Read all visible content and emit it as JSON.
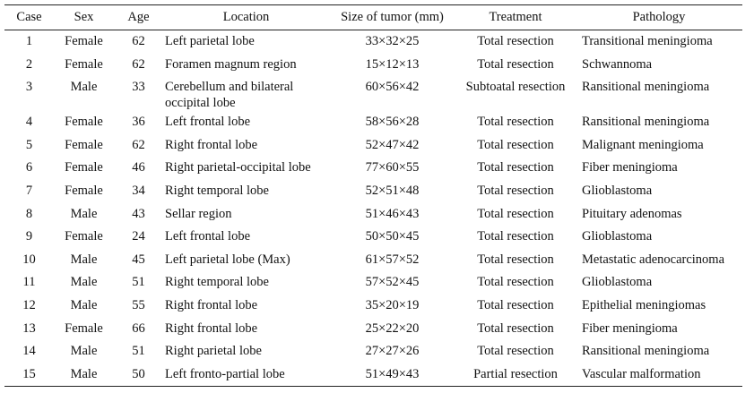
{
  "table": {
    "header": [
      "Case",
      "Sex",
      "Age",
      "Location",
      "Size of tumor (mm)",
      "Treatment",
      "Pathology"
    ],
    "rows": [
      [
        "1",
        "Female",
        "62",
        "Left parietal lobe",
        "33×32×25",
        "Total resection",
        "Transitional meningioma"
      ],
      [
        "2",
        "Female",
        "62",
        "Foramen magnum region",
        "15×12×13",
        "Total resection",
        "Schwannoma"
      ],
      [
        "3",
        "Male",
        "33",
        "Cerebellum and bilateral occipital lobe",
        "60×56×42",
        "Subtoatal resection",
        "Ransitional meningioma"
      ],
      [
        "4",
        "Female",
        "36",
        "Left frontal lobe",
        "58×56×28",
        "Total resection",
        "Ransitional meningioma"
      ],
      [
        "5",
        "Female",
        "62",
        "Right frontal lobe",
        "52×47×42",
        "Total resection",
        "Malignant meningioma"
      ],
      [
        "6",
        "Female",
        "46",
        "Right parietal-occipital lobe",
        "77×60×55",
        "Total resection",
        "Fiber meningioma"
      ],
      [
        "7",
        "Female",
        "34",
        "Right temporal lobe",
        "52×51×48",
        "Total resection",
        "Glioblastoma"
      ],
      [
        "8",
        "Male",
        "43",
        "Sellar region",
        "51×46×43",
        "Total resection",
        "Pituitary adenomas"
      ],
      [
        "9",
        "Female",
        "24",
        "Left frontal lobe",
        "50×50×45",
        "Total resection",
        "Glioblastoma"
      ],
      [
        "10",
        "Male",
        "45",
        "Left parietal lobe (Max)",
        "61×57×52",
        "Total resection",
        "Metastatic adenocarcinoma"
      ],
      [
        "11",
        "Male",
        "51",
        "Right temporal lobe",
        "57×52×45",
        "Total resection",
        "Glioblastoma"
      ],
      [
        "12",
        "Male",
        "55",
        "Right frontal lobe",
        "35×20×19",
        "Total resection",
        "Epithelial meningiomas"
      ],
      [
        "13",
        "Female",
        "66",
        "Right frontal lobe",
        "25×22×20",
        "Total resection",
        "Fiber meningioma"
      ],
      [
        "14",
        "Male",
        "51",
        "Right parietal lobe",
        "27×27×26",
        "Total resection",
        "Ransitional meningioma"
      ],
      [
        "15",
        "Male",
        "50",
        "Left fronto-partial lobe",
        "51×49×43",
        "Partial resection",
        "Vascular malformation"
      ]
    ]
  }
}
